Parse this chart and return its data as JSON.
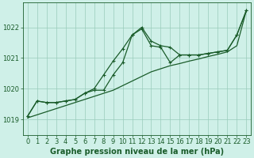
{
  "title": "Graphe pression niveau de la mer (hPa)",
  "background_color": "#cff0e8",
  "grid_color": "#99ccbb",
  "line_color": "#1a5c2a",
  "xlim": [
    -0.5,
    23.5
  ],
  "ylim": [
    1018.5,
    1022.8
  ],
  "yticks": [
    1019,
    1020,
    1021,
    1022
  ],
  "xticks": [
    0,
    1,
    2,
    3,
    4,
    5,
    6,
    7,
    8,
    9,
    10,
    11,
    12,
    13,
    14,
    15,
    16,
    17,
    18,
    19,
    20,
    21,
    22,
    23
  ],
  "series1_x": [
    0,
    1,
    2,
    3,
    4,
    5,
    6,
    7,
    8,
    9,
    10,
    11,
    12,
    13,
    14,
    15,
    16,
    17,
    18,
    19,
    20,
    21,
    22,
    23
  ],
  "series1_y": [
    1019.1,
    1019.6,
    1019.55,
    1019.55,
    1019.6,
    1019.65,
    1019.85,
    1020.0,
    1020.45,
    1020.9,
    1021.3,
    1021.75,
    1022.0,
    1021.55,
    1021.4,
    1021.35,
    1021.1,
    1021.1,
    1021.1,
    1021.15,
    1021.2,
    1021.25,
    1021.75,
    1022.55
  ],
  "series2_x": [
    0,
    1,
    2,
    3,
    4,
    5,
    6,
    7,
    8,
    9,
    10,
    11,
    12,
    13,
    14,
    15,
    16,
    17,
    18,
    19,
    20,
    21,
    22,
    23
  ],
  "series2_y": [
    1019.1,
    1019.6,
    1019.55,
    1019.55,
    1019.6,
    1019.65,
    1019.85,
    1019.95,
    1019.95,
    1020.45,
    1020.85,
    1021.75,
    1021.95,
    1021.4,
    1021.35,
    1020.85,
    1021.1,
    1021.1,
    1021.1,
    1021.15,
    1021.2,
    1021.25,
    1021.75,
    1022.55
  ],
  "series3_x": [
    0,
    1,
    2,
    3,
    4,
    5,
    6,
    7,
    8,
    9,
    10,
    11,
    12,
    13,
    14,
    15,
    16,
    17,
    18,
    19,
    20,
    21,
    22,
    23
  ],
  "series3_y": [
    1019.05,
    1019.15,
    1019.25,
    1019.35,
    1019.45,
    1019.55,
    1019.65,
    1019.75,
    1019.85,
    1019.95,
    1020.1,
    1020.25,
    1020.4,
    1020.55,
    1020.65,
    1020.75,
    1020.82,
    1020.9,
    1020.97,
    1021.05,
    1021.12,
    1021.2,
    1021.4,
    1022.55
  ],
  "tick_fontsize": 6,
  "xlabel_fontsize": 7
}
